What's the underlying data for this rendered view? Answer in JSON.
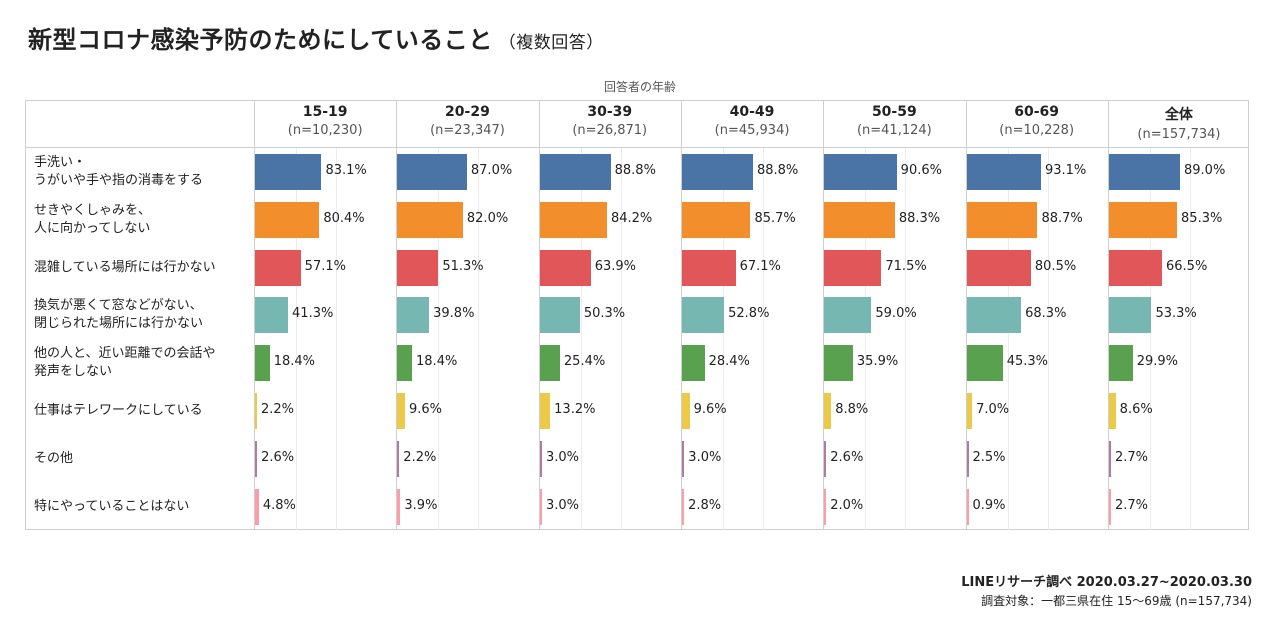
{
  "title": "新型コロナ感染予防のためにしていること",
  "subtitle": "（複数回答）",
  "axis_caption": "回答者の年齢",
  "source_line1": "LINEリサーチ調べ 2020.03.27~2020.03.30",
  "source_line2": "調査対象：一都三県在住 15〜69歳 (n=157,734)",
  "colors": [
    "#4a74a5",
    "#f28e2b",
    "#e15759",
    "#76b7b2",
    "#59a14f",
    "#edc948",
    "#b07aa1",
    "#ff9da7"
  ],
  "chart_data": {
    "type": "bar",
    "orientation": "horizontal",
    "title": "新型コロナ感染予防のためにしていること",
    "subtitle": "（複数回答）",
    "xlim": [
      0,
      100
    ],
    "columns": [
      {
        "name": "15-19",
        "n": "(n=10,230)"
      },
      {
        "name": "20-29",
        "n": "(n=23,347)"
      },
      {
        "name": "30-39",
        "n": "(n=26,871)"
      },
      {
        "name": "40-49",
        "n": "(n=45,934)"
      },
      {
        "name": "50-59",
        "n": "(n=41,124)"
      },
      {
        "name": "60-69",
        "n": "(n=10,228)"
      },
      {
        "name": "全体",
        "n": "(n=157,734)"
      }
    ],
    "categories": [
      "手洗い・\nうがいや手や指の消毒をする",
      "せきやくしゃみを、\n人に向かってしない",
      "混雑している場所には行かない",
      "換気が悪くて窓などがない、\n閉じられた場所には行かない",
      "他の人と、近い距離での会話や\n発声をしない",
      "仕事はテレワークにしている",
      "その他",
      "特にやっていることはない"
    ],
    "values": [
      [
        83.1,
        87.0,
        88.8,
        88.8,
        90.6,
        93.1,
        89.0
      ],
      [
        80.4,
        82.0,
        84.2,
        85.7,
        88.3,
        88.7,
        85.3
      ],
      [
        57.1,
        51.3,
        63.9,
        67.1,
        71.5,
        80.5,
        66.5
      ],
      [
        41.3,
        39.8,
        50.3,
        52.8,
        59.0,
        68.3,
        53.3
      ],
      [
        18.4,
        18.4,
        25.4,
        28.4,
        35.9,
        45.3,
        29.9
      ],
      [
        2.2,
        9.6,
        13.2,
        9.6,
        8.8,
        7.0,
        8.6
      ],
      [
        2.6,
        2.2,
        3.0,
        3.0,
        2.6,
        2.5,
        2.7
      ],
      [
        4.8,
        3.9,
        3.0,
        2.8,
        2.0,
        0.9,
        2.7
      ]
    ],
    "value_labels": [
      [
        "83.1%",
        "87.0%",
        "88.8%",
        "88.8%",
        "90.6%",
        "93.1%",
        "89.0%"
      ],
      [
        "80.4%",
        "82.0%",
        "84.2%",
        "85.7%",
        "88.3%",
        "88.7%",
        "85.3%"
      ],
      [
        "57.1%",
        "51.3%",
        "63.9%",
        "67.1%",
        "71.5%",
        "80.5%",
        "66.5%"
      ],
      [
        "41.3%",
        "39.8%",
        "50.3%",
        "52.8%",
        "59.0%",
        "68.3%",
        "53.3%"
      ],
      [
        "18.4%",
        "18.4%",
        "25.4%",
        "28.4%",
        "35.9%",
        "45.3%",
        "29.9%"
      ],
      [
        "2.2%",
        "9.6%",
        "13.2%",
        "9.6%",
        "8.8%",
        "7.0%",
        "8.6%"
      ],
      [
        "2.6%",
        "2.2%",
        "3.0%",
        "3.0%",
        "2.6%",
        "2.5%",
        "2.7%"
      ],
      [
        "4.8%",
        "3.9%",
        "3.0%",
        "2.8%",
        "2.0%",
        "0.9%",
        "2.7%"
      ]
    ],
    "grid": true,
    "legend": "none"
  }
}
